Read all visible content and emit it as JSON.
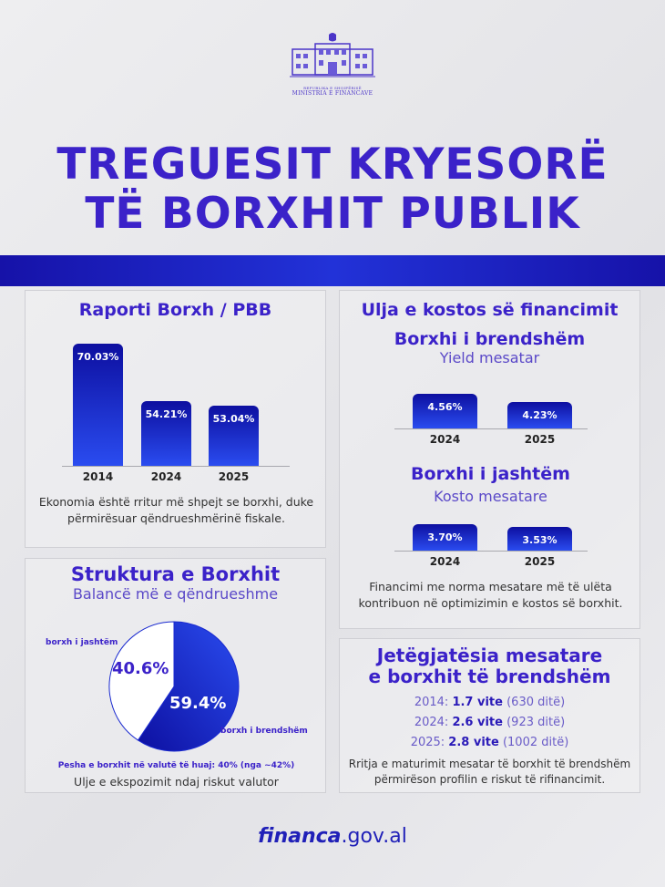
{
  "logo": {
    "text": "MINISTRIA E FINANCAVE",
    "small": "REPUBLIKA E SHQIPËRISË"
  },
  "title": {
    "line1": "TREGUESIT KRYESORË",
    "line2": "TË BORXHIT PUBLIK"
  },
  "colors": {
    "accent": "#3b22c9",
    "bar": "#1a2ad0"
  },
  "chart_data": [
    {
      "type": "bar",
      "title": "Raporti Borxh / PBB",
      "categories": [
        "2014",
        "2024",
        "2025"
      ],
      "values": [
        70.03,
        54.21,
        53.04
      ],
      "labels": [
        "70.03%",
        "54.21%",
        "53.04%"
      ],
      "caption": "Ekonomia është rritur më shpejt se borxhi, duke përmirësuar qëndrueshmërinë fiskale."
    },
    {
      "type": "pie",
      "title": "Struktura e Borxhit",
      "subtitle": "Balancë më e qëndrueshme",
      "slices": [
        {
          "name": "borxh i brendshëm",
          "value": 59.4,
          "label": "59.4%",
          "color": "#1a2ad0"
        },
        {
          "name": "borxh i jashtëm",
          "value": 40.6,
          "label": "40.6%",
          "color": "#ffffff"
        }
      ],
      "note": "Pesha e borxhit në valutë të huaj: 40% (nga ~42%)",
      "caption": "Ulje e ekspozimit ndaj riskut valutor"
    },
    {
      "type": "bar",
      "title": "Borxhi i brendshëm",
      "subtitle": "Yield mesatar",
      "categories": [
        "2024",
        "2025"
      ],
      "values": [
        4.56,
        4.23
      ],
      "labels": [
        "4.56%",
        "4.23%"
      ]
    },
    {
      "type": "bar",
      "title": "Borxhi i jashtëm",
      "subtitle": "Kosto mesatare",
      "categories": [
        "2024",
        "2025"
      ],
      "values": [
        3.7,
        3.53
      ],
      "labels": [
        "3.70%",
        "3.53%"
      ]
    }
  ],
  "cost": {
    "heading": "Ulja e kostos së financimit",
    "caption": "Financimi me norma mesatare më të ulëta kontribuon në optimizimin e kostos së borxhit."
  },
  "maturity": {
    "heading1": "Jetëgjatësia mesatare",
    "heading2": "e borxhit të brendshëm",
    "rows": [
      {
        "year": "2014:",
        "value": "1.7 vite",
        "days": "(630 ditë)"
      },
      {
        "year": "2024:",
        "value": "2.6 vite",
        "days": "(923 ditë)"
      },
      {
        "year": "2025:",
        "value": "2.8 vite",
        "days": "(1002 ditë)"
      }
    ],
    "caption": "Rritja e maturimit mesatar të borxhit të brendshëm përmirëson profilin e riskut të rifinancimit."
  },
  "footer": {
    "bold": "financa",
    "rest": ".gov.al"
  }
}
